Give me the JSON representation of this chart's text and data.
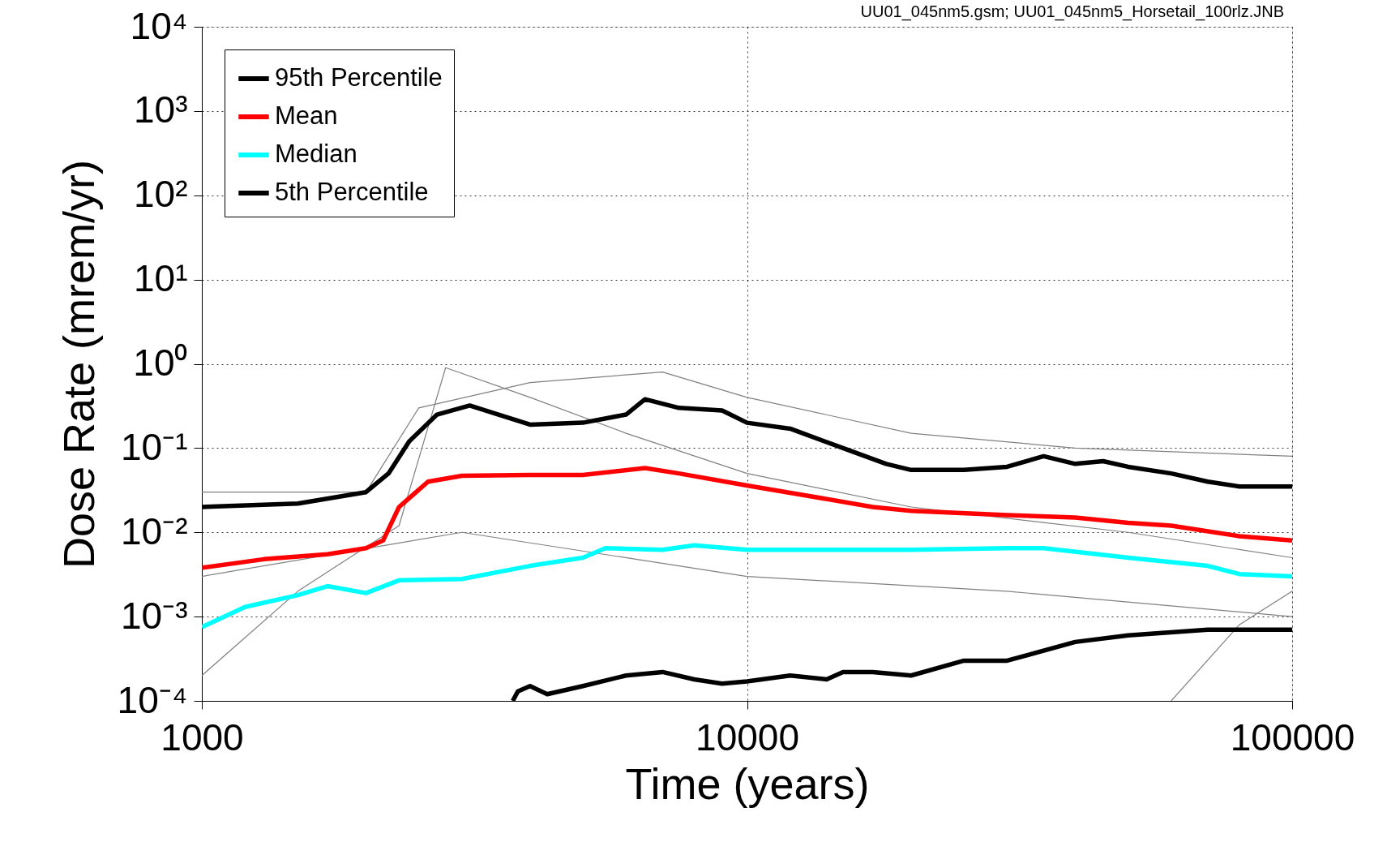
{
  "chart_data": {
    "type": "line",
    "xlabel": "Time (years)",
    "ylabel": "Dose Rate (mrem/yr)",
    "log": "xy",
    "grid": true,
    "legend": "top left",
    "xlim": [
      1000,
      100000
    ],
    "xticks": [
      1000,
      10000,
      100000
    ],
    "ylim": [
      0.0001,
      10000
    ],
    "yticks": [
      {
        "value": 0.0001,
        "label": "10⁻⁴"
      },
      {
        "value": 0.001,
        "label": "10⁻³"
      },
      {
        "value": 0.01,
        "label": "10⁻²"
      },
      {
        "value": 0.1,
        "label": "10⁻¹"
      },
      {
        "value": 1,
        "label": "10⁰"
      },
      {
        "value": 10,
        "label": "10¹"
      },
      {
        "value": 100,
        "label": "10²"
      },
      {
        "value": 1000,
        "label": "10³"
      },
      {
        "value": 10000,
        "label": "10⁴"
      }
    ],
    "annotations": [
      "UU01_045nm5.gsm; UU01_045nm5_Horsetail_100rlz.JNB"
    ],
    "series": [
      {
        "color": "#808080",
        "x": [
          1000,
          1500,
          2300,
          2800,
          4000,
          6000,
          10000,
          20000,
          50000,
          100000
        ],
        "values": [
          0.0002,
          0.002,
          0.012,
          0.9,
          0.4,
          0.15,
          0.05,
          0.02,
          0.01,
          0.005
        ]
      },
      {
        "color": "#808080",
        "x": [
          1000,
          2000,
          2500,
          4000,
          7000,
          10000,
          20000,
          40000,
          100000
        ],
        "values": [
          0.03,
          0.03,
          0.3,
          0.6,
          0.8,
          0.4,
          0.15,
          0.1,
          0.08
        ]
      },
      {
        "color": "#808080",
        "x": [
          60000,
          80000,
          100000
        ],
        "values": [
          0.0001,
          0.0008,
          0.002
        ]
      },
      {
        "color": "#808080",
        "x": [
          1000,
          3000,
          10000,
          30000,
          100000
        ],
        "values": [
          0.003,
          0.01,
          0.003,
          0.002,
          0.001
        ]
      },
      {
        "name": "95th Percentile",
        "color": "#000000",
        "x": [
          1000,
          1500,
          2000,
          2200,
          2400,
          2700,
          3100,
          3500,
          4000,
          5000,
          6000,
          6500,
          7500,
          9000,
          10000,
          12000,
          15000,
          18000,
          20000,
          25000,
          30000,
          35000,
          40000,
          45000,
          50000,
          60000,
          70000,
          80000,
          100000
        ],
        "values": [
          0.02,
          0.022,
          0.03,
          0.05,
          0.12,
          0.25,
          0.32,
          0.25,
          0.19,
          0.2,
          0.25,
          0.38,
          0.3,
          0.28,
          0.2,
          0.17,
          0.1,
          0.065,
          0.055,
          0.055,
          0.06,
          0.08,
          0.065,
          0.07,
          0.06,
          0.05,
          0.04,
          0.035,
          0.035
        ]
      },
      {
        "name": "Mean",
        "color": "#ff0000",
        "x": [
          1000,
          1300,
          1700,
          2000,
          2150,
          2300,
          2600,
          3000,
          4000,
          5000,
          6500,
          7500,
          10000,
          13000,
          17000,
          20000,
          30000,
          40000,
          50000,
          60000,
          80000,
          100000
        ],
        "values": [
          0.0038,
          0.0048,
          0.0055,
          0.0065,
          0.008,
          0.02,
          0.04,
          0.047,
          0.048,
          0.048,
          0.058,
          0.05,
          0.036,
          0.027,
          0.02,
          0.018,
          0.016,
          0.015,
          0.013,
          0.012,
          0.009,
          0.008
        ]
      },
      {
        "name": "Median",
        "color": "#00ffff",
        "x": [
          1000,
          1200,
          1500,
          1700,
          2000,
          2300,
          3000,
          4000,
          5000,
          5500,
          7000,
          8000,
          10000,
          15000,
          20000,
          30000,
          35000,
          50000,
          70000,
          80000,
          100000
        ],
        "values": [
          0.00075,
          0.0013,
          0.0018,
          0.0023,
          0.0019,
          0.0027,
          0.0028,
          0.004,
          0.005,
          0.0065,
          0.0062,
          0.007,
          0.0062,
          0.0062,
          0.0062,
          0.0065,
          0.0065,
          0.005,
          0.004,
          0.0032,
          0.003
        ]
      },
      {
        "name": "5th Percentile",
        "color": "#000000",
        "x": [
          3718,
          3800,
          4000,
          4300,
          5000,
          6000,
          7000,
          8000,
          9000,
          10000,
          12000,
          14000,
          15000,
          17000,
          20000,
          25000,
          30000,
          40000,
          50000,
          70000,
          100000
        ],
        "values": [
          0.0001,
          0.00013,
          0.00015,
          0.00012,
          0.00015,
          0.0002,
          0.00022,
          0.00018,
          0.00016,
          0.00017,
          0.0002,
          0.00018,
          0.00022,
          0.00022,
          0.0002,
          0.0003,
          0.0003,
          0.0005,
          0.0006,
          0.0007,
          0.0007
        ]
      }
    ]
  }
}
